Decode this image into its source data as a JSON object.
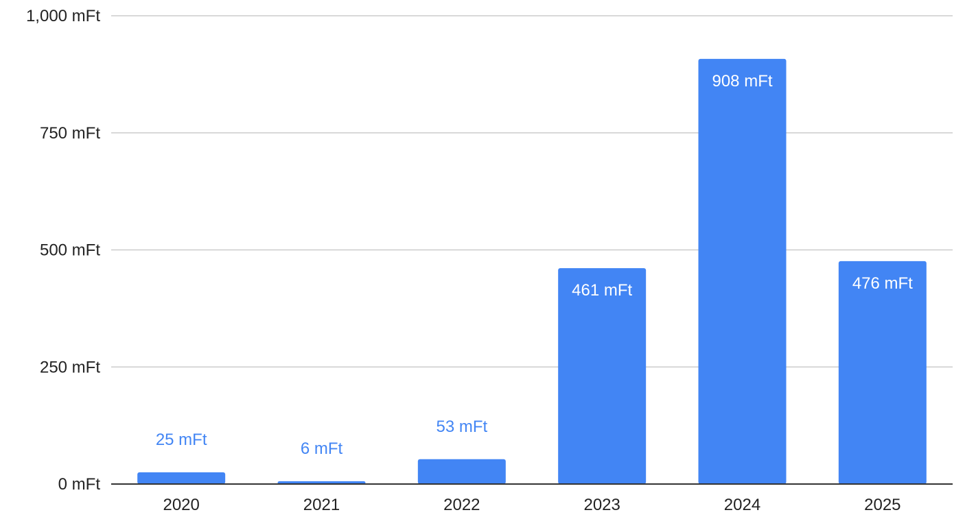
{
  "chart_data": {
    "type": "bar",
    "title": "",
    "xlabel": "",
    "ylabel": "",
    "unit": "mFt",
    "categories": [
      "2020",
      "2021",
      "2022",
      "2023",
      "2024",
      "2025"
    ],
    "values": [
      25,
      6,
      53,
      461,
      908,
      476
    ],
    "data_labels": [
      "25 mFt",
      "6 mFt",
      "53 mFt",
      "461 mFt",
      "908 mFt",
      "476 mFt"
    ],
    "ylim": [
      0,
      1000
    ],
    "yticks": [
      0,
      250,
      500,
      750,
      1000
    ],
    "ytick_labels": [
      "0 mFt",
      "250 mFt",
      "500 mFt",
      "750 mFt",
      "1,000 mFt"
    ],
    "grid": true,
    "legend": "none",
    "colors": {
      "bar": "#4285f4",
      "label_inside": "#ffffff",
      "label_outside": "#4285f4",
      "grid": "#cccccc",
      "axis": "#333333"
    }
  }
}
